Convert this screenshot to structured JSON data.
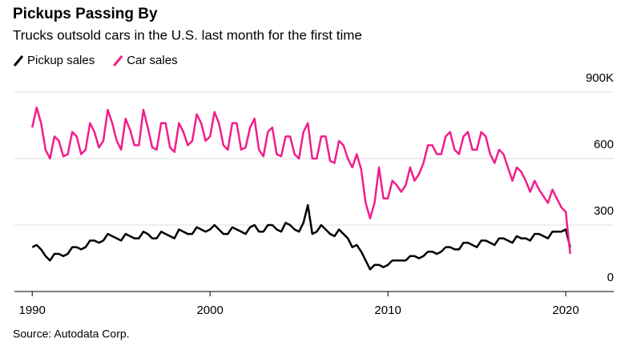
{
  "chart_data": {
    "type": "line",
    "title": "Pickups Passing By",
    "subtitle": "Trucks outsold cars in the U.S. last month for the first time",
    "source": "Source: Autodata Corp.",
    "x": [
      1990,
      1990.25,
      1990.5,
      1990.75,
      1991,
      1991.25,
      1991.5,
      1991.75,
      1992,
      1992.25,
      1992.5,
      1992.75,
      1993,
      1993.25,
      1993.5,
      1993.75,
      1994,
      1994.25,
      1994.5,
      1994.75,
      1995,
      1995.25,
      1995.5,
      1995.75,
      1996,
      1996.25,
      1996.5,
      1996.75,
      1997,
      1997.25,
      1997.5,
      1997.75,
      1998,
      1998.25,
      1998.5,
      1998.75,
      1999,
      1999.25,
      1999.5,
      1999.75,
      2000,
      2000.25,
      2000.5,
      2000.75,
      2001,
      2001.25,
      2001.5,
      2001.75,
      2002,
      2002.25,
      2002.5,
      2002.75,
      2003,
      2003.25,
      2003.5,
      2003.75,
      2004,
      2004.25,
      2004.5,
      2004.75,
      2005,
      2005.25,
      2005.5,
      2005.75,
      2006,
      2006.25,
      2006.5,
      2006.75,
      2007,
      2007.25,
      2007.5,
      2007.75,
      2008,
      2008.25,
      2008.5,
      2008.75,
      2009,
      2009.25,
      2009.5,
      2009.75,
      2010,
      2010.25,
      2010.5,
      2010.75,
      2011,
      2011.25,
      2011.5,
      2011.75,
      2012,
      2012.25,
      2012.5,
      2012.75,
      2013,
      2013.25,
      2013.5,
      2013.75,
      2014,
      2014.25,
      2014.5,
      2014.75,
      2015,
      2015.25,
      2015.5,
      2015.75,
      2016,
      2016.25,
      2016.5,
      2016.75,
      2017,
      2017.25,
      2017.5,
      2017.75,
      2018,
      2018.25,
      2018.5,
      2018.75,
      2019,
      2019.25,
      2019.5,
      2019.75,
      2020,
      2020.25
    ],
    "series": [
      {
        "name": "Pickup sales",
        "color": "#000000",
        "values": [
          200,
          210,
          190,
          160,
          140,
          170,
          170,
          160,
          170,
          200,
          200,
          190,
          200,
          230,
          230,
          220,
          230,
          260,
          250,
          240,
          230,
          260,
          250,
          240,
          240,
          270,
          260,
          240,
          240,
          270,
          260,
          250,
          240,
          280,
          270,
          260,
          260,
          290,
          280,
          270,
          280,
          300,
          280,
          260,
          260,
          290,
          280,
          270,
          260,
          290,
          300,
          270,
          270,
          300,
          300,
          280,
          270,
          310,
          300,
          280,
          270,
          310,
          390,
          260,
          270,
          300,
          280,
          260,
          250,
          280,
          260,
          240,
          200,
          210,
          180,
          140,
          100,
          120,
          120,
          110,
          120,
          140,
          140,
          140,
          140,
          160,
          160,
          150,
          160,
          180,
          180,
          170,
          180,
          200,
          200,
          190,
          190,
          220,
          220,
          210,
          200,
          230,
          230,
          220,
          210,
          240,
          240,
          230,
          220,
          250,
          240,
          240,
          230,
          260,
          260,
          250,
          240,
          270,
          270,
          270,
          280,
          200
        ]
      },
      {
        "name": "Car sales",
        "color": "#f21d8c",
        "values": [
          740,
          830,
          760,
          640,
          600,
          700,
          680,
          610,
          620,
          720,
          700,
          620,
          640,
          760,
          720,
          650,
          680,
          820,
          760,
          680,
          640,
          780,
          730,
          660,
          660,
          820,
          740,
          650,
          640,
          760,
          760,
          650,
          630,
          760,
          720,
          660,
          680,
          800,
          760,
          680,
          700,
          810,
          760,
          660,
          640,
          760,
          760,
          640,
          650,
          740,
          780,
          640,
          610,
          720,
          740,
          620,
          610,
          700,
          700,
          620,
          600,
          720,
          760,
          600,
          600,
          700,
          700,
          590,
          580,
          680,
          660,
          600,
          560,
          620,
          550,
          400,
          330,
          400,
          560,
          420,
          420,
          500,
          480,
          450,
          480,
          560,
          500,
          530,
          580,
          660,
          660,
          620,
          620,
          700,
          720,
          640,
          620,
          700,
          720,
          640,
          640,
          720,
          700,
          620,
          580,
          640,
          620,
          560,
          500,
          560,
          540,
          500,
          450,
          500,
          460,
          430,
          400,
          460,
          420,
          380,
          360,
          170
        ]
      }
    ],
    "xlim": [
      1989,
      2022.7
    ],
    "xticks": [
      1990,
      2000,
      2010,
      2020
    ],
    "ylim": [
      0,
      900
    ],
    "yticks": [
      0,
      300,
      600,
      {
        "value": 900,
        "label": "900K"
      }
    ],
    "grid": true,
    "legend": "top-left"
  }
}
